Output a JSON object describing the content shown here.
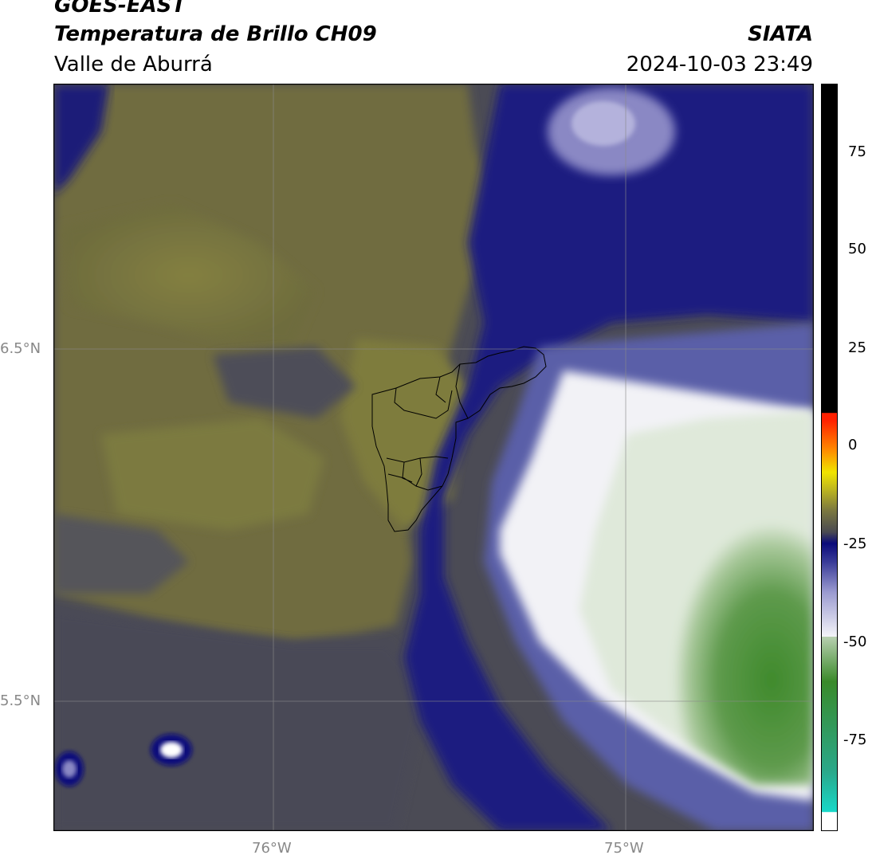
{
  "header": {
    "satellite": "GOES-EAST",
    "product": "Temperatura de Brillo CH09",
    "region": "Valle de Aburrá",
    "agency": "SIATA",
    "timestamp": "2024-10-03 23:49"
  },
  "map": {
    "lat_labels": [
      "6.5°N",
      "5.5°N"
    ],
    "lon_labels": [
      "76°W",
      "75°W"
    ],
    "gridlines": true
  },
  "colorbar": {
    "ticks": [
      "75",
      "50",
      "25",
      "0",
      "-25",
      "-50",
      "-75"
    ],
    "colors": {
      "white": "#ffffff",
      "cyan": "#18d8c8",
      "green_dark": "#3a8a2a",
      "green_light": "#c8dcc0",
      "white_mid": "#f4f4f8",
      "blue_mid": "#6b6fb8",
      "navy": "#0a0a7a",
      "gray": "#4a4a52",
      "olive": "#7d7a3e",
      "yellow": "#f0e400",
      "orange": "#ff8a00",
      "red": "#ff2000",
      "black": "#000000"
    }
  }
}
